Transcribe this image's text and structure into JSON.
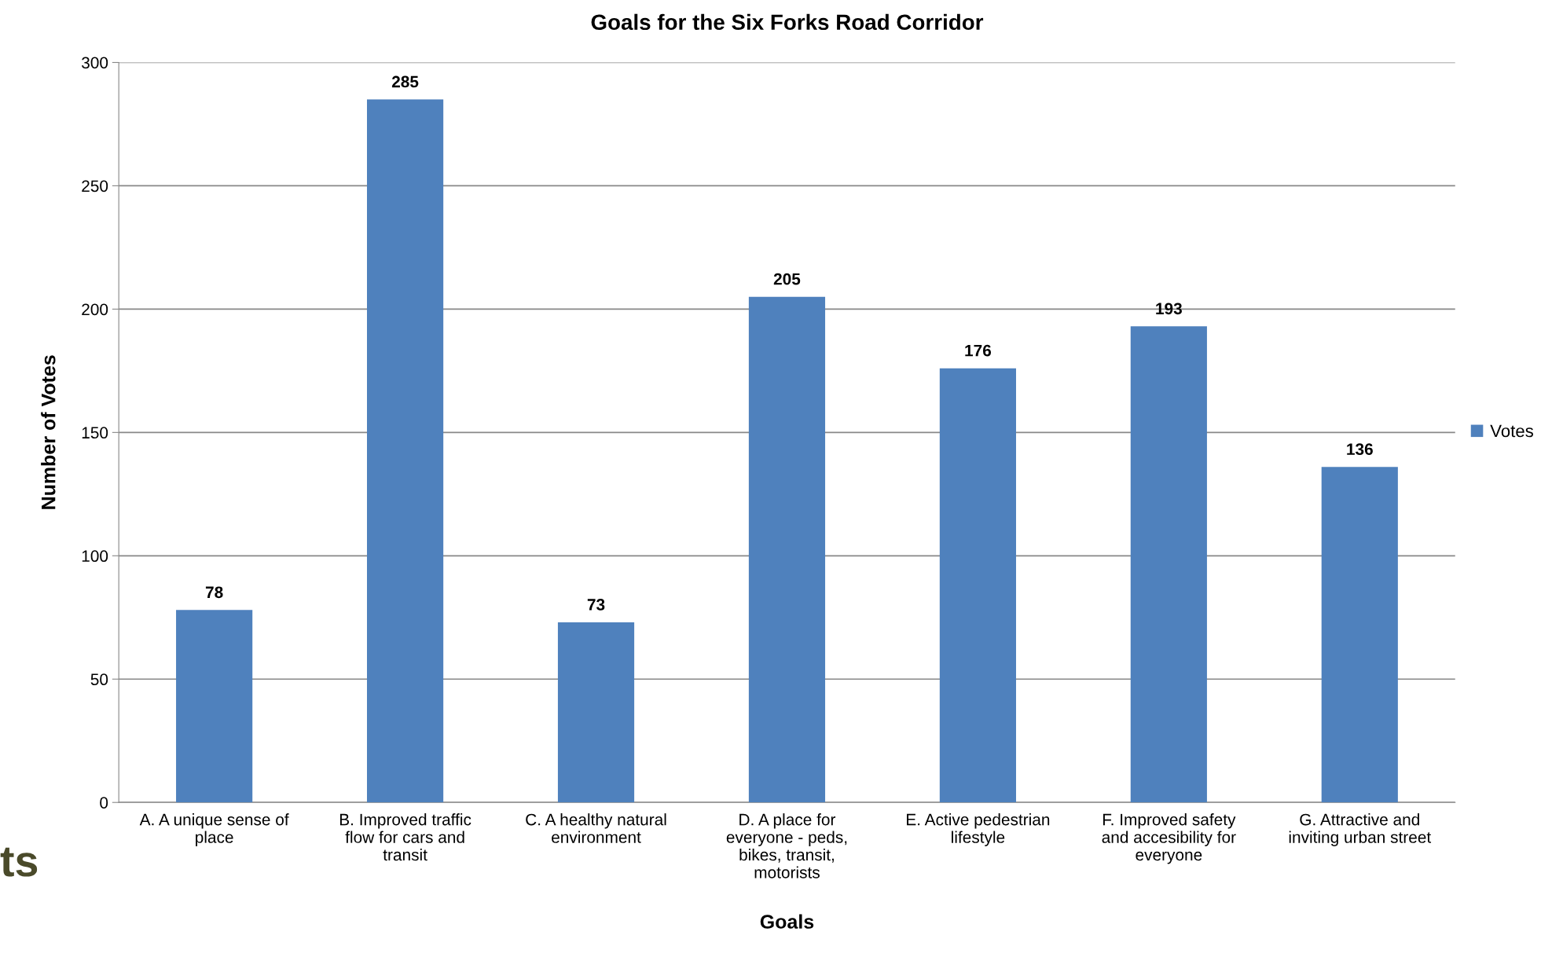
{
  "chart_data": {
    "type": "bar",
    "title": "Goals for the Six Forks Road Corridor",
    "xlabel": "Goals",
    "ylabel": "Number of Votes",
    "categories": [
      "A. A unique sense of\nplace",
      "B. Improved traffic\nflow for cars and\ntransit",
      "C. A healthy natural\nenvironment",
      "D. A place for\neveryone - peds,\nbikes, transit,\nmotorists",
      "E. Active pedestrian\nlifestyle",
      "F. Improved safety\nand accesibility for\neveryone",
      "G. Attractive and\ninviting urban street"
    ],
    "series": [
      {
        "name": "Votes",
        "color": "#4f81bd",
        "values": [
          78,
          285,
          73,
          205,
          176,
          193,
          136
        ]
      }
    ],
    "ylim": [
      0,
      300
    ],
    "yticks": [
      0,
      50,
      100,
      150,
      200,
      250,
      300
    ],
    "grid": "y",
    "legend": "right",
    "data_labels": true,
    "annotations": [
      "ts"
    ]
  }
}
